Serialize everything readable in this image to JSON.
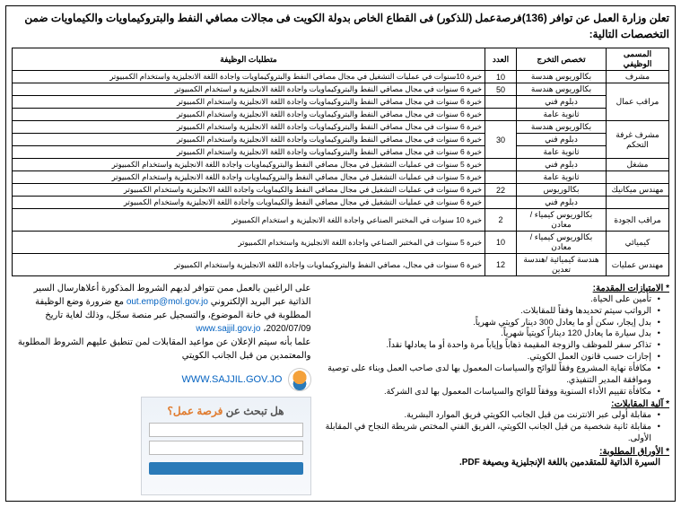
{
  "header": "تعلن وزارة العمل عن توافر (136)فرصةعمل (للذكور) فى القطاع الخاص بدولة الكويت فى مجالات مصافي النفط والبتروكيماويات والكيماويات ضمن التخصصات التالية:",
  "cols": {
    "title": "المسمى الوظيفي",
    "spec": "تخصص التخرج",
    "count": "العدد",
    "req": "متطلبات الوظيفة"
  },
  "rows": [
    {
      "title": "مشرف",
      "spec": "بكالوريوس هندسة",
      "count": "10",
      "req": "خبرة 10سنوات في عمليات التشغيل في مجال مصافي النفط والبتروكيماويات واجادة اللغة الانجليزية واستخدام الكمبيوتر"
    },
    {
      "title": "مراقب عمال",
      "rowspan": 3,
      "spec": "بكالوريوس هندسة",
      "count": "50",
      "req": "خبرة 6 سنوات في مجال مصافي النفط والبتروكيماويات واجادة اللغة الانجليزية و استخدام الكمبيوتر"
    },
    {
      "spec": "دبلوم فني",
      "count": "",
      "req": "خبرة 6 سنوات في مجال مصافي النفط والبتروكيماويات واجادة اللغة الانجليزية واستخدام الكمبيوتر"
    },
    {
      "spec": "ثانوية عامة",
      "count": "",
      "req": "خبرة 6 سنوات في مجال مصافي النفط والبتروكيماويات واجادة اللغة الانجليزية واستخدام الكمبيوتر"
    },
    {
      "title": "مشرف غرفة التحكم",
      "rowspan": 3,
      "spec": "بكالوريوس هندسة",
      "count": "30",
      "countRowspan": 3,
      "req": "خبرة 6 سنوات في مجال مصافي النفط والبتروكيماويات واجادة اللغة الانجليزية واستخدام الكمبيوتر"
    },
    {
      "spec": "دبلوم فني",
      "req": "خبرة 6 سنوات في مجال مصافي النفط والبتروكيماويات واجادة اللغة الانجليزية واستخدام الكمبيوتر"
    },
    {
      "spec": "ثانوية عامة",
      "req": "خبرة 6 سنوات في مجال مصافي النفط والبتروكيماويات واجادة اللغة الانجليزية واستخدام الكمبيوتر"
    },
    {
      "title": "مشغل",
      "spec": "دبلوم فني",
      "count": "",
      "req": "خبرة 5 سنوات في عمليات التشغيل في مجال مصافي النفط والبتروكيماويات واجادة اللغة الانجليزية واستخدام الكمبيوتر"
    },
    {
      "title": "",
      "spec": "ثانوية عامة",
      "count": "",
      "req": "خبرة 5 سنوات في عمليات التشغيل في مجال مصافي النفط والبتروكيماويات واجادة اللغة الانجليزية واستخدام الكمبيوتر"
    },
    {
      "title": "مهندس ميكانيك",
      "spec": "بكالوريوس",
      "count": "22",
      "req": "خبرة 6 سنوات في عمليات التشغيل في مجال مصافي النفط والكيماويات واجادة اللغة الانجليزية واستخدام الكمبيوتر"
    },
    {
      "title": "",
      "spec": "دبلوم فني",
      "count": "",
      "req": "خبرة 6 سنوات في عمليات التشغيل في مجال مصافي النفط والكيماويات واجادة اللغة الانجليزية واستخدام الكمبيوتر"
    },
    {
      "title": "مراقب الجودة",
      "spec": "بكالوريوس كيمياء / معادن",
      "count": "2",
      "req": "خبرة 10 سنوات في المختبر الصناعي واجادة اللغة الانجليزية و استخدام الكمبيوتر"
    },
    {
      "title": "كيميائي",
      "spec": "بكالوريوس كيمياء / معادن",
      "count": "10",
      "req": "خبرة 5 سنوات في المختبر الصناعي واجادة اللغة الانجليزية واستخدام الكمبيوتر"
    },
    {
      "title": "مهندس عمليات",
      "spec": "هندسة كيميائية /هندسة تعدين",
      "count": "12",
      "req": "خبرة 6 سنوات في مجال، مصافي النفط والبتروكيماويات واجادة اللغة الانجليزية واستخدام الكمبيوتر"
    }
  ],
  "benefits": {
    "h": "* الامتيازات المقدمة:",
    "items": [
      "تأمين على الحياة.",
      "الرواتب سيتم تحديدها وفقاً للمقابلات.",
      "بدل إيجار، سكن أو ما يعادل 300 دينار كويتي شهرياً.",
      "بدل سيارة ما يعادل 120 ديناراً كويتياً شهرياً.",
      "تذاكر سفر للموظف والزوجة المقيمة ذهاباً وإياباً مرة واحدة أو ما يعادلها نقداً.",
      "إجازات حسب قانون العمل الكويتي.",
      "مكافأة نهاية المشروع وفقاً للوائح والسياسات المعمول بها لدى صاحب العمل وبناء على توصية وموافقة المدير التنفيذي.",
      "مكافأة تقييم الأداء السنوية ووفقاً للوائح والسياسات المعمول بها لدى الشركة."
    ]
  },
  "interview": {
    "h": "* آلية المقابلات:",
    "items": [
      "مقابلة أولى عبر الانترنت من قبل الجانب الكويتي   فريق الموارد البشرية.",
      "مقابلة ثانية شخصية من قبل الجانب الكويتي، الفريق الفني المختص شريطة النجاح في المقابلة الأولى."
    ]
  },
  "docs": {
    "h": "* الأوراق المطلوبة:",
    "text": "السيرة الذاتية للمتقدمين باللغة الإنجليزية وبصيغة PDF."
  },
  "contact": {
    "l1a": "على الراغبين بالعمل ممن تتوافر لديهم الشروط المذكورة أعلاهارسال السير الذاتية عبر البريد الإلكتروني ",
    "email": "out.emp@mol.gov.jo",
    "l1b": " مع ضرورة وضع الوظيفة المطلوبة في خانة الموضوع، والتسجيل عبر منصة سجّل، وذلك لغاية تاريخ ",
    "date": "2020/07/09",
    "site1": "www.sajjil.gov.jo",
    "l2": "علما بأنه سيتم الإعلان عن مواعيد المقابلات لمن تنطبق عليهم الشروط المطلوبة والمعتمدين من قبل الجانب الكويتي",
    "site2": "WWW.SAJJIL.GOV.JO",
    "login_q": "هل تبحث عن",
    "login_job": "فرصة عمل؟"
  }
}
